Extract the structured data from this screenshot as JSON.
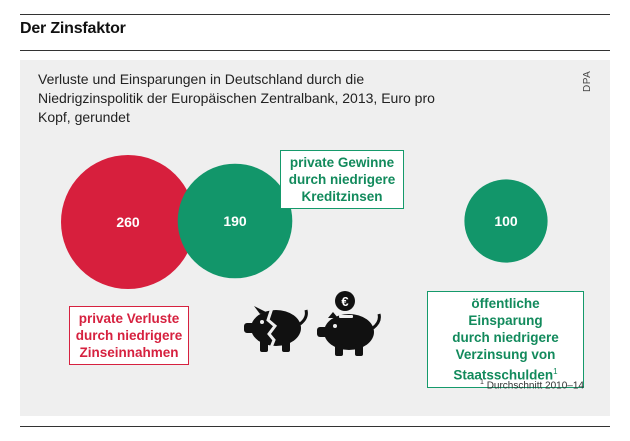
{
  "header": {
    "title": "Der Zinsfaktor"
  },
  "subtitle": "Verluste und Einsparungen in Deutschland durch die Niedrigzinspolitik der Europäischen Zentralbank, 2013, Euro pro Kopf, gerundet",
  "source": "DPA",
  "footnote": {
    "mark": "1",
    "text": "Durchschnitt 2010–14"
  },
  "colors": {
    "red": "#d71f3d",
    "green": "#12966a",
    "panel": "#efefef"
  },
  "icons": [
    "broken-piggy-bank-icon",
    "piggy-bank-euro-icon"
  ],
  "chart_data": {
    "type": "bubble",
    "unit": "Euro pro Kopf",
    "series": [
      {
        "name": "private Verluste durch niedrigere Zinseinnahmen",
        "value": 260,
        "value_label": "260",
        "color": "#d71f3d",
        "label_lines": [
          "private Verluste",
          "durch niedrigere",
          "Zinseinnahmen"
        ],
        "footnote_mark": ""
      },
      {
        "name": "private Gewinne durch niedrigere Kreditzinsen",
        "value": 190,
        "value_label": "190",
        "color": "#12966a",
        "label_lines": [
          "private Gewinne",
          "durch niedrigere",
          "Kreditzinsen"
        ],
        "footnote_mark": ""
      },
      {
        "name": "öffentliche Einsparung durch niedrigere Verzinsung von Staatsschulden",
        "value": 100,
        "value_label": "100",
        "color": "#12966a",
        "label_lines": [
          "öffentliche Einsparung",
          "durch niedrigere",
          "Verzinsung von",
          "Staatsschulden"
        ],
        "footnote_mark": "1"
      }
    ]
  }
}
